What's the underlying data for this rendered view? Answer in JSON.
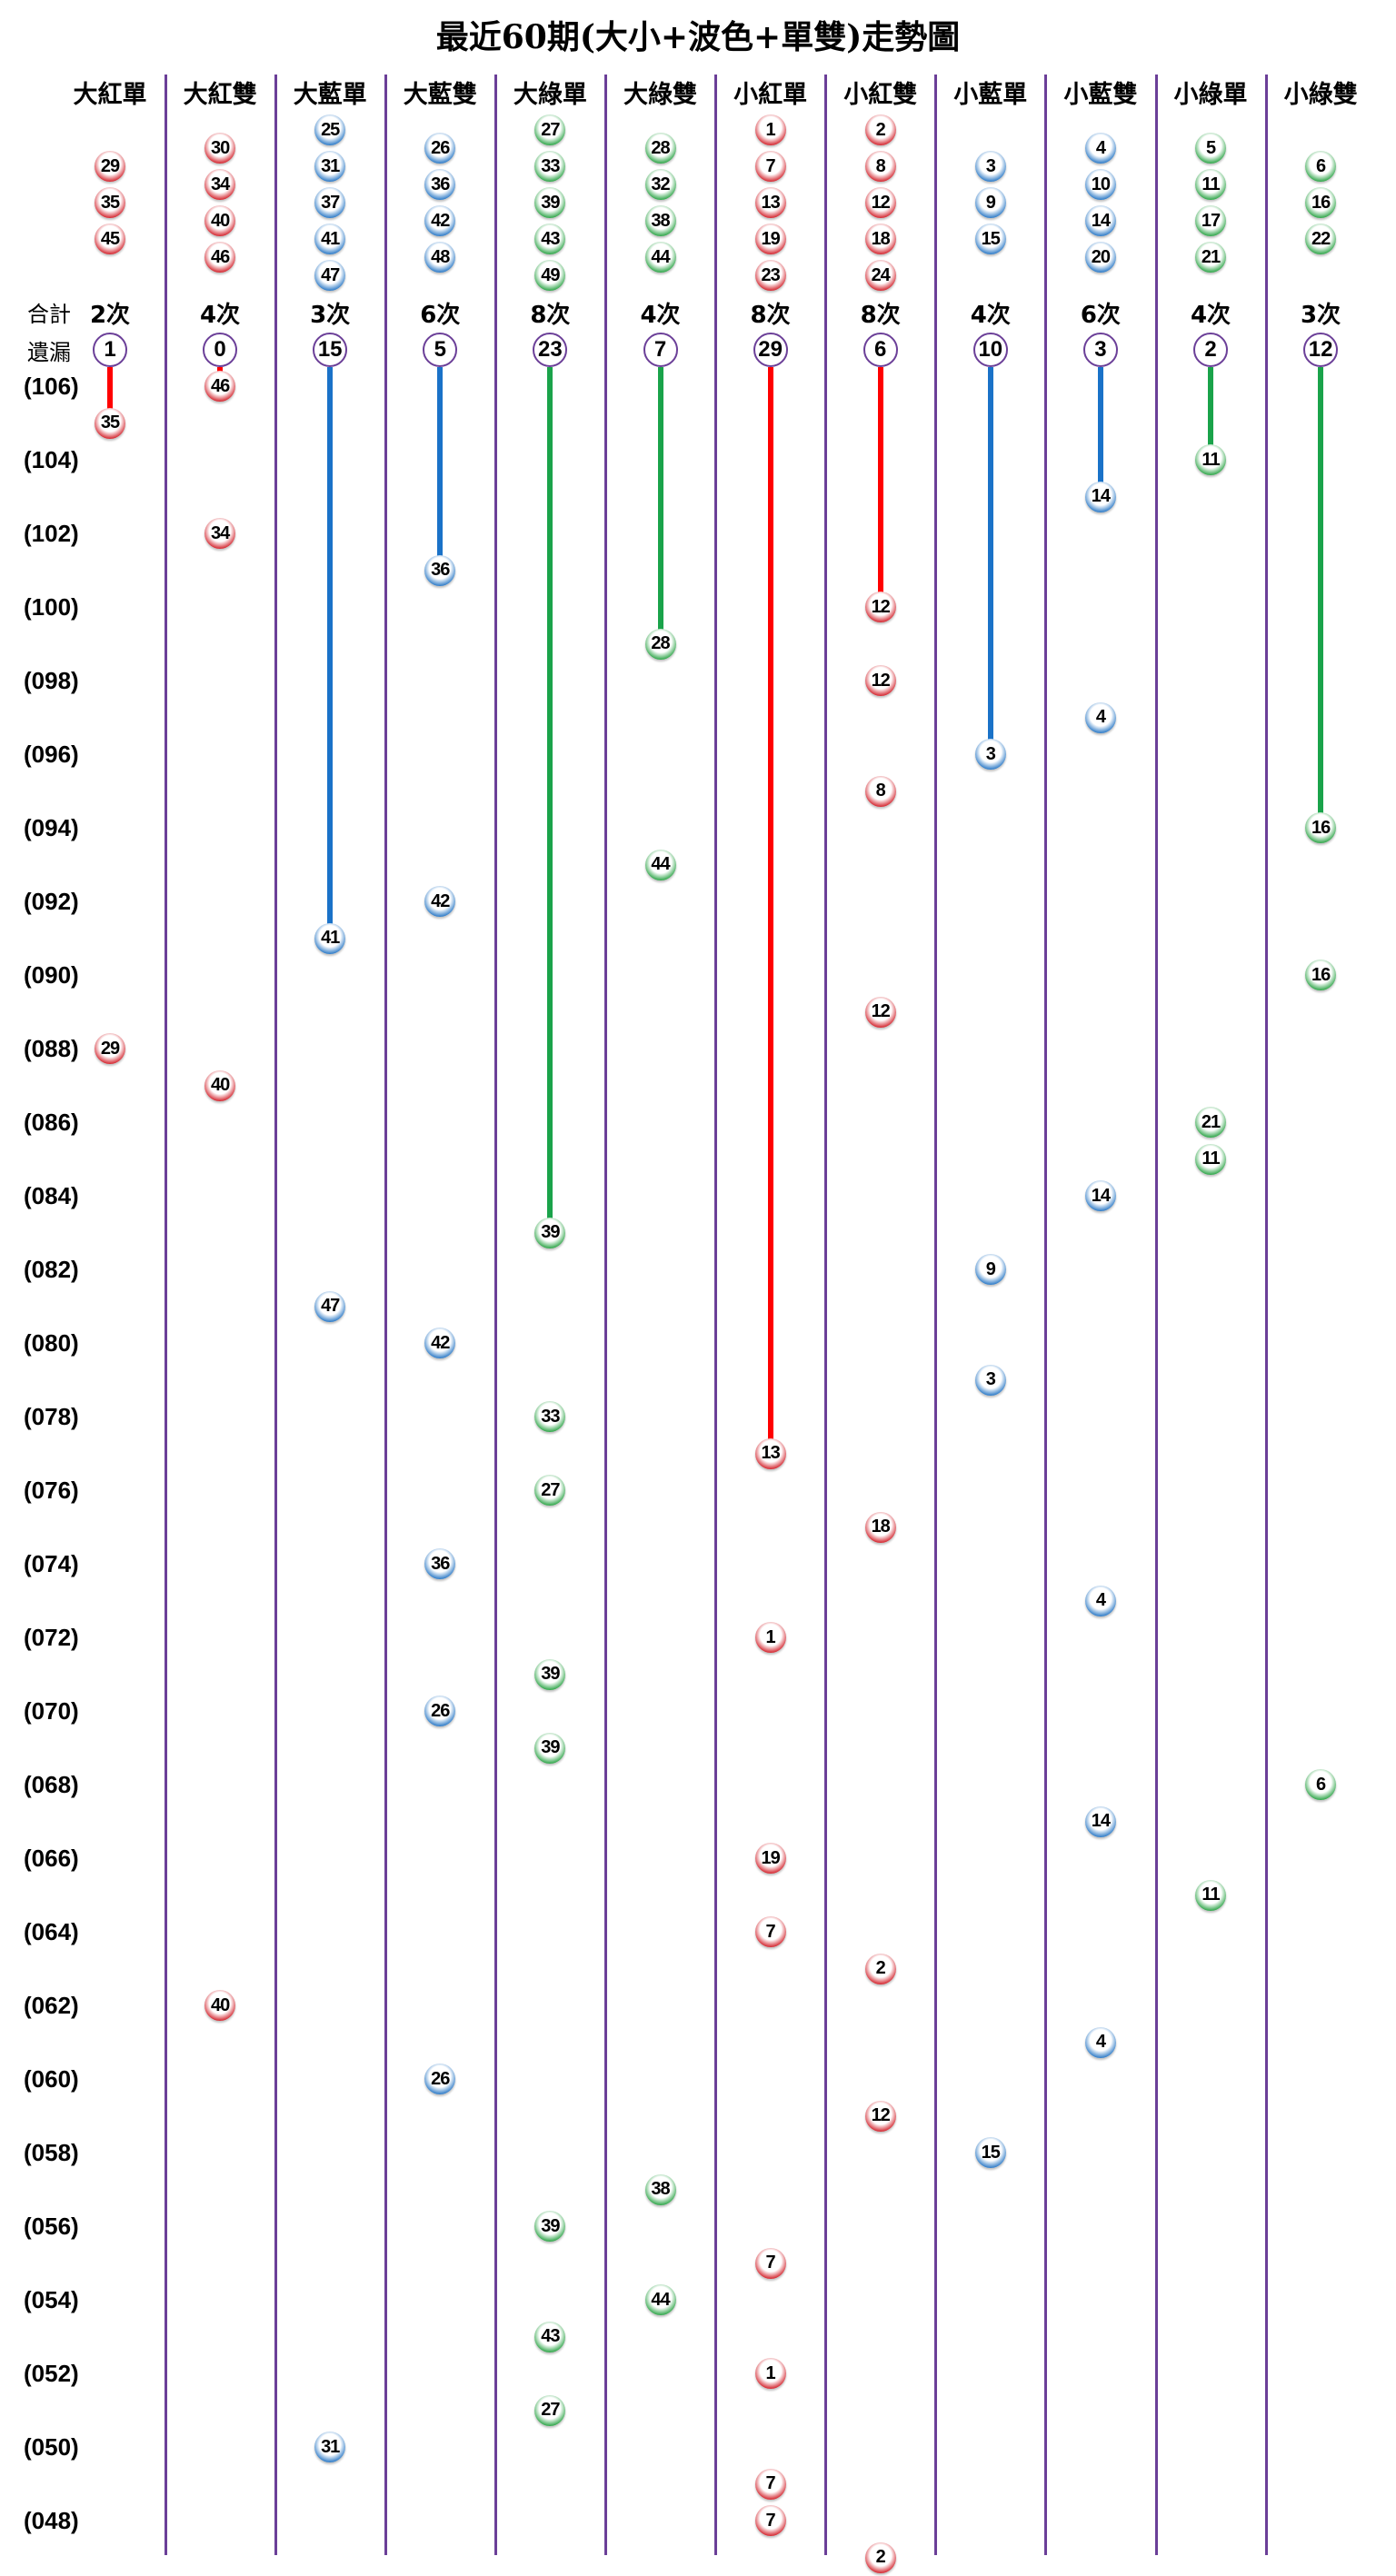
{
  "title": "最近60期(大小+波色+單雙)走勢圖",
  "summary_labels": {
    "count": "合計",
    "miss": "遺漏"
  },
  "colors": {
    "red": "#d0141e",
    "blue": "#1b6fc2",
    "green": "#1e9e3a",
    "red_line": "#ff0000",
    "blue_line": "#1a72c8",
    "green_line": "#1aa34a",
    "divider": "#6b3f98"
  },
  "row_labels": [
    "(106)",
    "(104)",
    "(102)",
    "(100)",
    "(098)",
    "(096)",
    "(094)",
    "(092)",
    "(090)",
    "(088)",
    "(086)",
    "(084)",
    "(082)",
    "(080)",
    "(078)",
    "(076)",
    "(074)",
    "(072)",
    "(070)",
    "(068)",
    "(066)",
    "(064)",
    "(062)",
    "(060)",
    "(058)",
    "(056)",
    "(054)",
    "(052)",
    "(050)",
    "(048)"
  ],
  "chart_data": {
    "type": "table",
    "title": "最近60期(大小+波色+單雙)走勢圖",
    "period_range": [
      47,
      106
    ],
    "columns": [
      {
        "name": "大紅單",
        "color": "red",
        "pool": [
          29,
          35,
          45
        ],
        "count": "2次",
        "miss": 1,
        "draws": [
          [
            105,
            35
          ],
          [
            88,
            29
          ]
        ]
      },
      {
        "name": "大紅雙",
        "color": "red",
        "pool": [
          30,
          34,
          40,
          46
        ],
        "count": "4次",
        "miss": 0,
        "draws": [
          [
            106,
            46
          ],
          [
            102,
            34
          ],
          [
            87,
            40
          ],
          [
            62,
            40
          ]
        ]
      },
      {
        "name": "大藍單",
        "color": "blue",
        "pool": [
          25,
          31,
          37,
          41,
          47
        ],
        "count": "3次",
        "miss": 15,
        "draws": [
          [
            91,
            41
          ],
          [
            81,
            47
          ],
          [
            50,
            31
          ]
        ]
      },
      {
        "name": "大藍雙",
        "color": "blue",
        "pool": [
          26,
          36,
          42,
          48
        ],
        "count": "6次",
        "miss": 5,
        "draws": [
          [
            101,
            36
          ],
          [
            92,
            42
          ],
          [
            80,
            42
          ],
          [
            74,
            36
          ],
          [
            70,
            26
          ],
          [
            60,
            26
          ]
        ]
      },
      {
        "name": "大綠單",
        "color": "green",
        "pool": [
          27,
          33,
          39,
          43,
          49
        ],
        "count": "8次",
        "miss": 23,
        "draws": [
          [
            83,
            39
          ],
          [
            78,
            33
          ],
          [
            76,
            27
          ],
          [
            71,
            39
          ],
          [
            69,
            39
          ],
          [
            56,
            39
          ],
          [
            53,
            43
          ],
          [
            51,
            27
          ]
        ]
      },
      {
        "name": "大綠雙",
        "color": "green",
        "pool": [
          28,
          32,
          38,
          44
        ],
        "count": "4次",
        "miss": 7,
        "draws": [
          [
            99,
            28
          ],
          [
            93,
            44
          ],
          [
            57,
            38
          ],
          [
            54,
            44
          ]
        ]
      },
      {
        "name": "小紅單",
        "color": "red",
        "pool": [
          1,
          7,
          13,
          19,
          23
        ],
        "count": "8次",
        "miss": 29,
        "draws": [
          [
            77,
            13
          ],
          [
            72,
            1
          ],
          [
            66,
            19
          ],
          [
            64,
            7
          ],
          [
            55,
            7
          ],
          [
            52,
            1
          ],
          [
            49,
            7
          ],
          [
            48,
            7
          ]
        ]
      },
      {
        "name": "小紅雙",
        "color": "red",
        "pool": [
          2,
          8,
          12,
          18,
          24
        ],
        "count": "8次",
        "miss": 6,
        "draws": [
          [
            100,
            12
          ],
          [
            98,
            12
          ],
          [
            95,
            8
          ],
          [
            89,
            12
          ],
          [
            75,
            18
          ],
          [
            63,
            2
          ],
          [
            59,
            12
          ],
          [
            47,
            2
          ]
        ]
      },
      {
        "name": "小藍單",
        "color": "blue",
        "pool": [
          3,
          9,
          15
        ],
        "count": "4次",
        "miss": 10,
        "draws": [
          [
            96,
            3
          ],
          [
            82,
            9
          ],
          [
            79,
            3
          ],
          [
            58,
            15
          ]
        ]
      },
      {
        "name": "小藍雙",
        "color": "blue",
        "pool": [
          4,
          10,
          14,
          20
        ],
        "count": "6次",
        "miss": 3,
        "draws": [
          [
            103,
            14
          ],
          [
            97,
            4
          ],
          [
            84,
            14
          ],
          [
            73,
            4
          ],
          [
            67,
            14
          ],
          [
            61,
            4
          ]
        ]
      },
      {
        "name": "小綠單",
        "color": "green",
        "pool": [
          5,
          11,
          17,
          21
        ],
        "count": "4次",
        "miss": 2,
        "draws": [
          [
            104,
            11
          ],
          [
            86,
            21
          ],
          [
            85,
            11
          ],
          [
            65,
            11
          ]
        ]
      },
      {
        "name": "小綠雙",
        "color": "green",
        "pool": [
          6,
          16,
          22
        ],
        "count": "3次",
        "miss": 12,
        "draws": [
          [
            94,
            16
          ],
          [
            90,
            16
          ],
          [
            68,
            6
          ]
        ]
      }
    ]
  }
}
